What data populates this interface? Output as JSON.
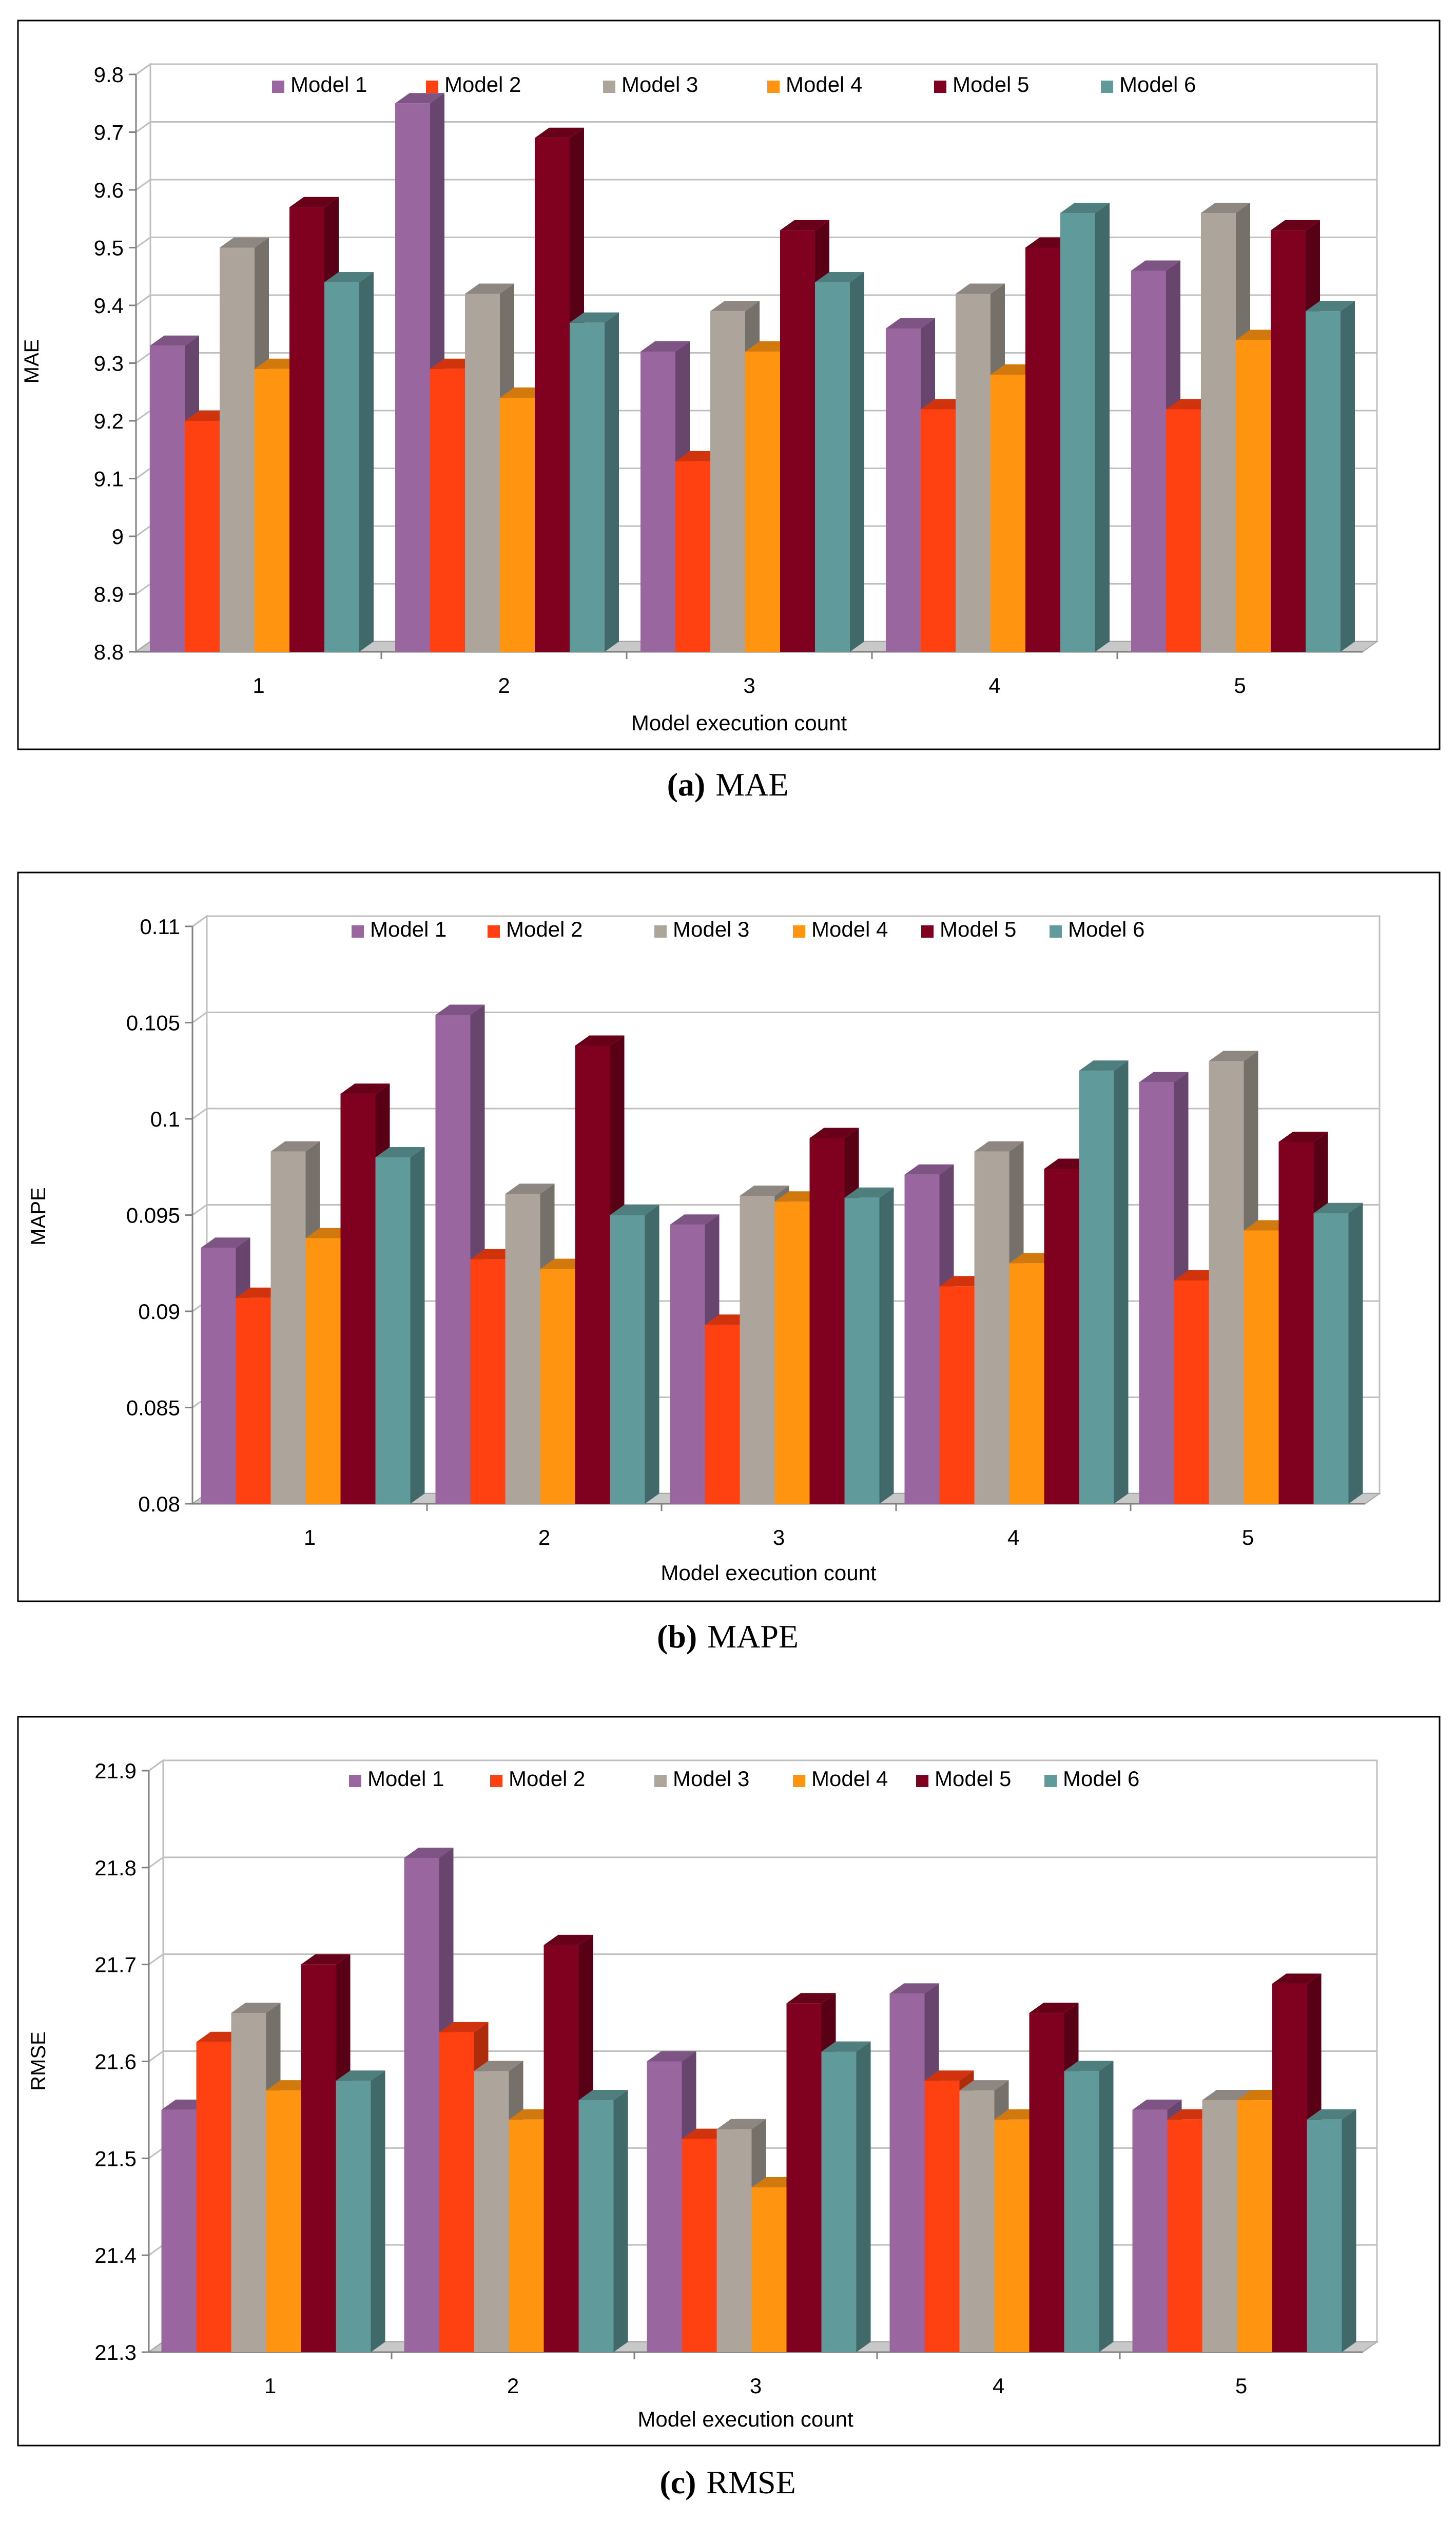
{
  "figure": {
    "captions": [
      {
        "label": "(a)",
        "text": "MAE"
      },
      {
        "label": "(b)",
        "text": "MAPE"
      },
      {
        "label": "(c)",
        "text": "RMSE"
      }
    ]
  },
  "chart_data": [
    {
      "type": "bar",
      "title": "",
      "xlabel": "Model execution count",
      "ylabel": "MAE",
      "categories": [
        "1",
        "2",
        "3",
        "4",
        "5"
      ],
      "ylim": [
        8.8,
        9.8
      ],
      "yticks": [
        8.8,
        8.9,
        9,
        9.1,
        9.2,
        9.3,
        9.4,
        9.5,
        9.6,
        9.7,
        9.8
      ],
      "ytick_labels": [
        "8.8",
        "8.9",
        "9",
        "9.1",
        "9.2",
        "9.3",
        "9.4",
        "9.5",
        "9.6",
        "9.7",
        "9.8"
      ],
      "legend_position": "top",
      "grid": true,
      "series": [
        {
          "name": "Model 1",
          "color": "#9966A0",
          "values": [
            9.33,
            9.75,
            9.32,
            9.36,
            9.46
          ]
        },
        {
          "name": "Model 2",
          "color": "#FF4010",
          "values": [
            9.2,
            9.29,
            9.13,
            9.22,
            9.22
          ]
        },
        {
          "name": "Model 3",
          "color": "#ADA49C",
          "values": [
            9.5,
            9.42,
            9.39,
            9.42,
            9.56
          ]
        },
        {
          "name": "Model 4",
          "color": "#FF9410",
          "values": [
            9.29,
            9.24,
            9.32,
            9.28,
            9.34
          ]
        },
        {
          "name": "Model 5",
          "color": "#800020",
          "values": [
            9.57,
            9.69,
            9.53,
            9.5,
            9.53
          ]
        },
        {
          "name": "Model 6",
          "color": "#609A9A",
          "values": [
            9.44,
            9.37,
            9.44,
            9.56,
            9.39
          ]
        }
      ]
    },
    {
      "type": "bar",
      "title": "",
      "xlabel": "Model execution count",
      "ylabel": "MAPE",
      "categories": [
        "1",
        "2",
        "3",
        "4",
        "5"
      ],
      "ylim": [
        0.08,
        0.11
      ],
      "yticks": [
        0.08,
        0.085,
        0.09,
        0.095,
        0.1,
        0.105,
        0.11
      ],
      "ytick_labels": [
        "0.08",
        "0.085",
        "0.09",
        "0.095",
        "0.1",
        "0.105",
        "0.11"
      ],
      "legend_position": "top",
      "grid": true,
      "series": [
        {
          "name": "Model 1",
          "color": "#9966A0",
          "values": [
            0.0933,
            0.1054,
            0.0945,
            0.0971,
            0.1019
          ]
        },
        {
          "name": "Model 2",
          "color": "#FF4010",
          "values": [
            0.0907,
            0.0927,
            0.0893,
            0.0913,
            0.0916
          ]
        },
        {
          "name": "Model 3",
          "color": "#ADA49C",
          "values": [
            0.0983,
            0.0961,
            0.096,
            0.0983,
            0.103
          ]
        },
        {
          "name": "Model 4",
          "color": "#FF9410",
          "values": [
            0.0938,
            0.0922,
            0.0957,
            0.0925,
            0.0942
          ]
        },
        {
          "name": "Model 5",
          "color": "#800020",
          "values": [
            0.1013,
            0.1038,
            0.099,
            0.0974,
            0.0988
          ]
        },
        {
          "name": "Model 6",
          "color": "#609A9A",
          "values": [
            0.098,
            0.095,
            0.0959,
            0.1025,
            0.0951
          ]
        }
      ]
    },
    {
      "type": "bar",
      "title": "",
      "xlabel": "Model execution count",
      "ylabel": "RMSE",
      "categories": [
        "1",
        "2",
        "3",
        "4",
        "5"
      ],
      "ylim": [
        21.3,
        21.9
      ],
      "yticks": [
        21.3,
        21.4,
        21.5,
        21.6,
        21.7,
        21.8,
        21.9
      ],
      "ytick_labels": [
        "21.3",
        "21.4",
        "21.5",
        "21.6",
        "21.7",
        "21.8",
        "21.9"
      ],
      "legend_position": "top",
      "grid": true,
      "series": [
        {
          "name": "Model 1",
          "color": "#9966A0",
          "values": [
            21.55,
            21.81,
            21.6,
            21.67,
            21.55
          ]
        },
        {
          "name": "Model 2",
          "color": "#FF4010",
          "values": [
            21.62,
            21.63,
            21.52,
            21.58,
            21.54
          ]
        },
        {
          "name": "Model 3",
          "color": "#ADA49C",
          "values": [
            21.65,
            21.59,
            21.53,
            21.57,
            21.56
          ]
        },
        {
          "name": "Model 4",
          "color": "#FF9410",
          "values": [
            21.57,
            21.54,
            21.47,
            21.54,
            21.56
          ]
        },
        {
          "name": "Model 5",
          "color": "#800020",
          "values": [
            21.7,
            21.72,
            21.66,
            21.65,
            21.68
          ]
        },
        {
          "name": "Model 6",
          "color": "#609A9A",
          "values": [
            21.58,
            21.56,
            21.61,
            21.59,
            21.54
          ]
        }
      ]
    }
  ]
}
